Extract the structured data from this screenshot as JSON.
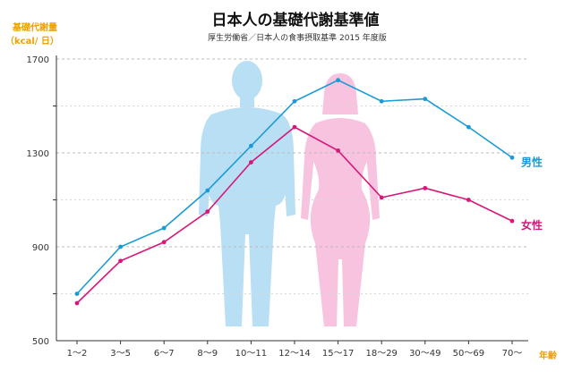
{
  "chart_data": {
    "type": "line",
    "title": "日本人の基礎代謝基準値",
    "subtitle": "厚生労働省／日本人の食事摂取基準 2015 年度版",
    "ylabel_line1": "基礎代謝量",
    "ylabel_line2": "（kcal/ 日）",
    "xlabel": "年齢",
    "categories": [
      "1〜2",
      "3〜5",
      "6〜7",
      "8〜9",
      "10〜11",
      "12〜14",
      "15〜17",
      "18〜29",
      "30〜49",
      "50〜69",
      "70〜"
    ],
    "ylim": [
      500,
      1700
    ],
    "yticks": [
      {
        "value": 500,
        "label": "500"
      },
      {
        "value": 900,
        "label": "900"
      },
      {
        "value": 1300,
        "label": "1300"
      },
      {
        "value": 1700,
        "label": "1700"
      }
    ],
    "minor_gridlines": [
      700,
      1100,
      1500
    ],
    "grid": true,
    "series": [
      {
        "name": "男性",
        "color": "#1a9ad6",
        "values": [
          700,
          900,
          980,
          1140,
          1330,
          1520,
          1610,
          1520,
          1530,
          1410,
          1280
        ]
      },
      {
        "name": "女性",
        "color": "#d6187a",
        "values": [
          660,
          840,
          920,
          1050,
          1260,
          1410,
          1310,
          1110,
          1150,
          1100,
          1010
        ]
      }
    ],
    "silhouette_colors": {
      "male": "#b9dff5",
      "female": "#f7c3df"
    }
  }
}
